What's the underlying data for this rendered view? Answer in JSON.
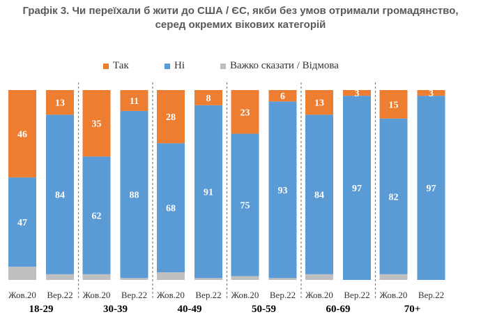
{
  "title_line1": "Графік 3. Чи переїхали б жити до США / ЄС, якби без умов отримали громадянство,",
  "title_line2": "серед окремих вікових категорій",
  "colors": {
    "tak": "#ED7D31",
    "ni": "#5B9BD5",
    "vazhko": "#BFBFBF"
  },
  "legend": [
    {
      "label": "Так",
      "color": "#ED7D31"
    },
    {
      "label": "Ні",
      "color": "#5B9BD5"
    },
    {
      "label": "Важко сказати / Відмова",
      "color": "#BFBFBF"
    }
  ],
  "chart_data": {
    "type": "bar",
    "stacked": true,
    "orientation": "vertical",
    "ylim": [
      0,
      100
    ],
    "grid": false,
    "legend_position": "top",
    "groups": [
      "18-29",
      "30-39",
      "40-49",
      "50-59",
      "60-69",
      "70+"
    ],
    "periods": [
      "Жов.20",
      "Вер.22"
    ],
    "series": [
      {
        "name": "Так",
        "values": [
          [
            46,
            13
          ],
          [
            35,
            11
          ],
          [
            28,
            8
          ],
          [
            23,
            6
          ],
          [
            13,
            3
          ],
          [
            15,
            3
          ]
        ]
      },
      {
        "name": "Ні",
        "values": [
          [
            47,
            84
          ],
          [
            62,
            88
          ],
          [
            68,
            91
          ],
          [
            75,
            93
          ],
          [
            84,
            97
          ],
          [
            82,
            97
          ]
        ]
      },
      {
        "name": "Важко сказати / Відмова",
        "values": [
          [
            7,
            3
          ],
          [
            3,
            1
          ],
          [
            4,
            1
          ],
          [
            2,
            1
          ],
          [
            3,
            0
          ],
          [
            3,
            0
          ]
        ]
      }
    ]
  }
}
